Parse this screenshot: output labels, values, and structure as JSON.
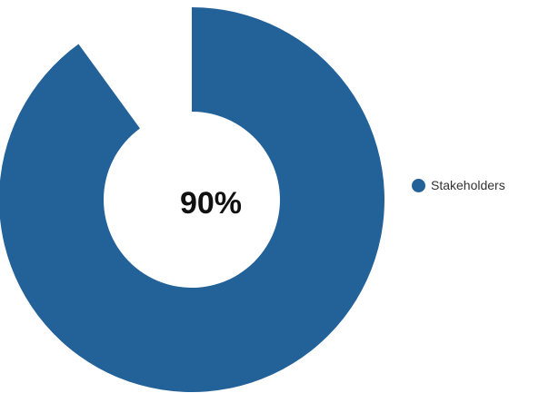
{
  "chart_data": {
    "type": "pie",
    "variant": "donut",
    "series": [
      {
        "name": "Stakeholders",
        "value": 90,
        "color": "#236199"
      }
    ],
    "total": 100,
    "center_label": "90%",
    "legend_position": "right"
  }
}
